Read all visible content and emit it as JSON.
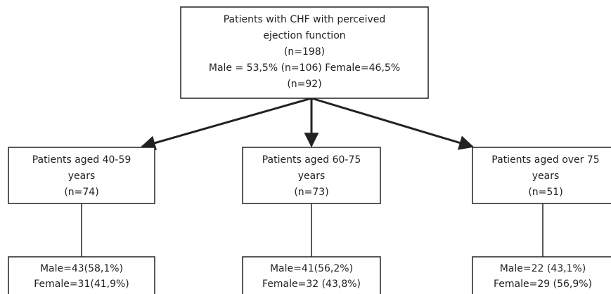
{
  "nodes": [
    {
      "lines": [
        "Patients with CHF with perceived",
        "ejection function",
        "(n=198)",
        "Male = 53,5% (n=106) Female=46,5%",
        "(n=92)"
      ]
    },
    {
      "lines": [
        "Patients aged 40-59",
        "years",
        "(n=74)"
      ]
    },
    {
      "lines": [
        "Patients aged 60-75",
        "years",
        "(n=73)"
      ]
    },
    {
      "lines": [
        "Patients aged over 75",
        "years",
        "(n=51)"
      ]
    },
    {
      "lines": [
        "Male=43(58,1%)",
        "Female=31(41,9%)"
      ]
    },
    {
      "lines": [
        "Male=41(56,2%)",
        "Female=32 (43,8%)"
      ]
    },
    {
      "lines": [
        "Male=22 (43,1%)",
        "Female=29 (56,9%)"
      ]
    }
  ]
}
